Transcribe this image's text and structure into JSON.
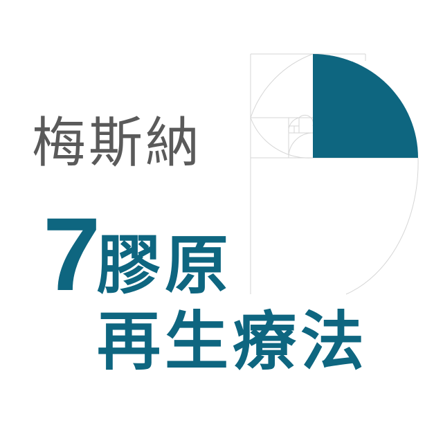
{
  "logo": {
    "brand_name": "梅斯納",
    "number": "7",
    "line_two": "膠原",
    "line_three": "再生療法"
  },
  "colors": {
    "accent": "#0e6680",
    "brand_text": "#5a5a5a",
    "guide_lines": "#d4d4d4",
    "background": "#ffffff"
  },
  "icons": {
    "golden_spiral": "golden-spiral-icon"
  }
}
